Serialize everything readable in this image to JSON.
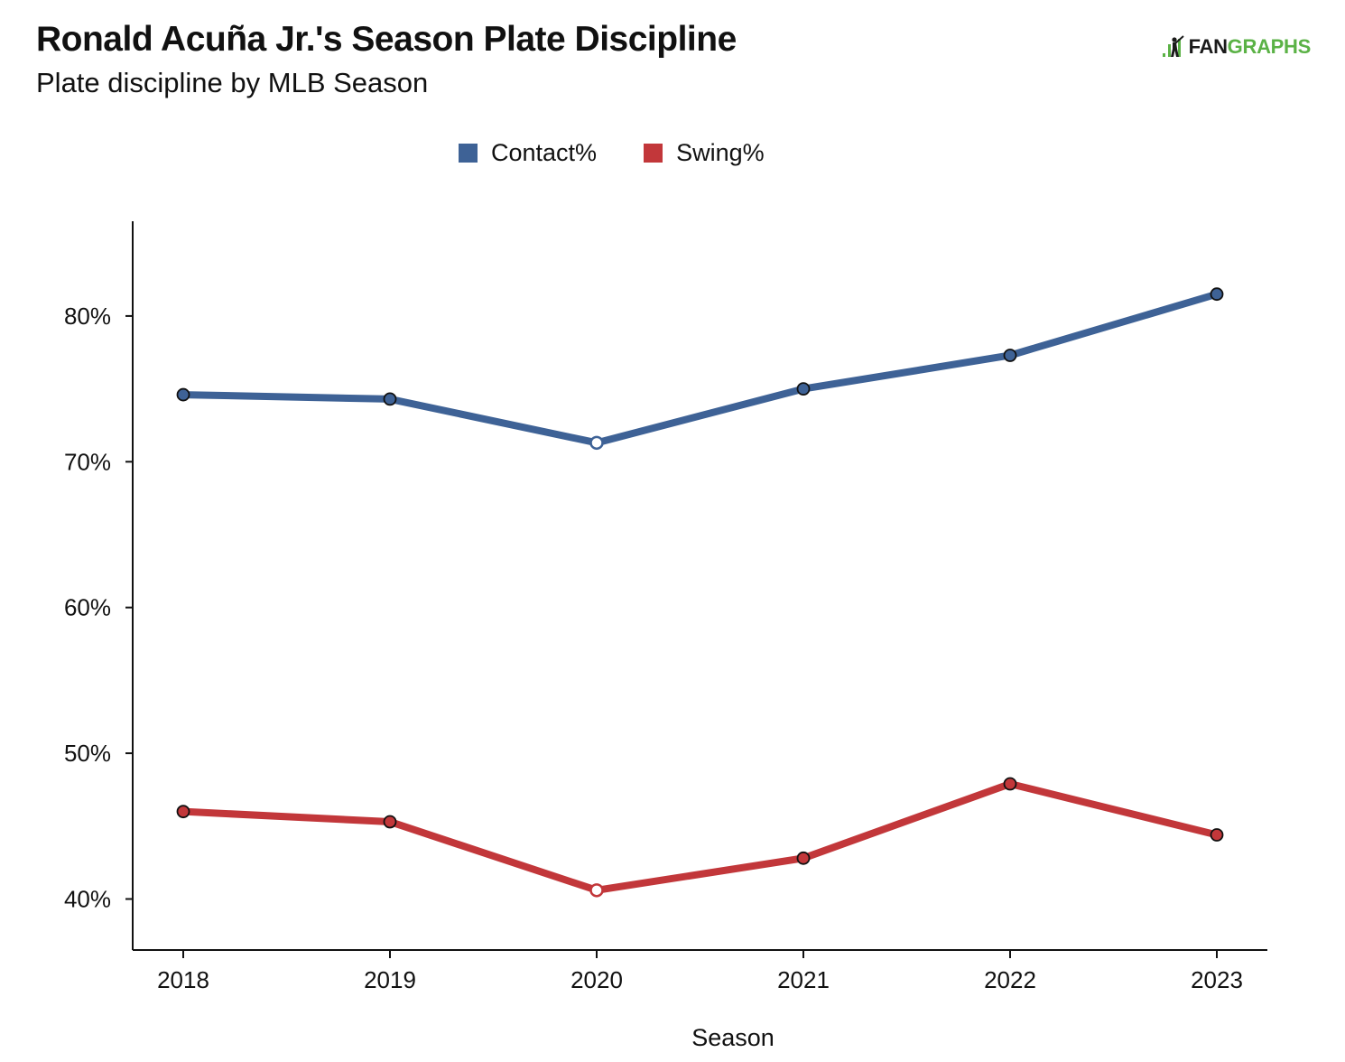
{
  "header": {
    "title": "Ronald Acuña Jr.'s Season Plate Discipline",
    "subtitle": "Plate discipline by MLB Season"
  },
  "logo": {
    "part1": "FAN",
    "part2": "GRAPHS",
    "icon": "fangraphs-batter-icon"
  },
  "colors": {
    "contact": "#3e6296",
    "swing": "#c2373a",
    "axis": "#111111",
    "logo_green": "#5bb246"
  },
  "chart_data": {
    "type": "line",
    "title": "Ronald Acuña Jr.'s Season Plate Discipline",
    "subtitle": "Plate discipline by MLB Season",
    "xlabel": "Season",
    "ylabel": "",
    "x": [
      "2018",
      "2019",
      "2020",
      "2021",
      "2022",
      "2023"
    ],
    "yticks": [
      40,
      50,
      60,
      70,
      80
    ],
    "ytick_labels": [
      "40%",
      "50%",
      "60%",
      "70%",
      "80%"
    ],
    "ylim": [
      36.5,
      86.5
    ],
    "grid": false,
    "legend_position": "top-center",
    "hollow_point_index": 2,
    "series": [
      {
        "name": "Contact%",
        "color": "#3e6296",
        "values": [
          74.6,
          74.3,
          71.3,
          75.0,
          77.3,
          81.5
        ]
      },
      {
        "name": "Swing%",
        "color": "#c2373a",
        "values": [
          46.0,
          45.3,
          40.6,
          42.8,
          47.9,
          44.4
        ]
      }
    ]
  }
}
